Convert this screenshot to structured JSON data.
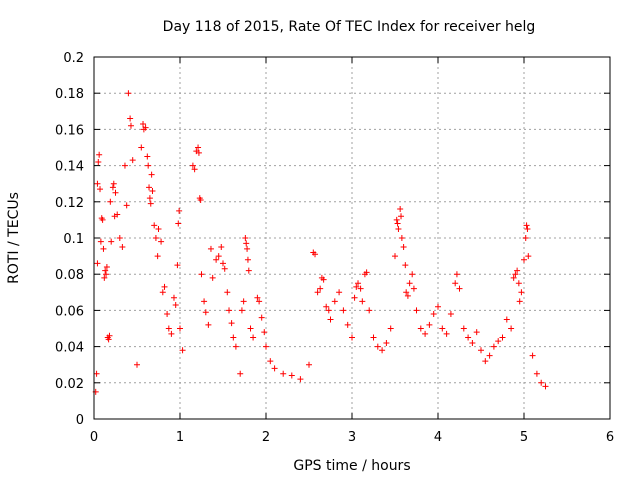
{
  "chart_data": {
    "type": "scatter",
    "title": "Day 118 of 2015, Rate Of TEC Index for receiver helg",
    "xlabel": "GPS time / hours",
    "ylabel": "ROTI / TECUs",
    "xlim": [
      0,
      6
    ],
    "ylim": [
      0,
      0.2
    ],
    "x_ticks": [
      0,
      1,
      2,
      3,
      4,
      5,
      6
    ],
    "x_tick_labels": [
      "0",
      "1",
      "2",
      "3",
      "4",
      "5",
      "6"
    ],
    "y_ticks": [
      0,
      0.02,
      0.04,
      0.06,
      0.08,
      0.1,
      0.12,
      0.14,
      0.16,
      0.18,
      0.2
    ],
    "y_tick_labels": [
      "0",
      "0.02",
      "0.04",
      "0.06",
      "0.08",
      "0.1",
      "0.12",
      "0.14",
      "0.16",
      "0.18",
      "0.2"
    ],
    "grid": true,
    "marker": "+",
    "color": "#ff0000",
    "series": [
      {
        "name": "ROTI",
        "points": [
          [
            0.02,
            0.015
          ],
          [
            0.03,
            0.025
          ],
          [
            0.04,
            0.086
          ],
          [
            0.04,
            0.13
          ],
          [
            0.05,
            0.142
          ],
          [
            0.06,
            0.146
          ],
          [
            0.07,
            0.127
          ],
          [
            0.08,
            0.098
          ],
          [
            0.09,
            0.111
          ],
          [
            0.1,
            0.11
          ],
          [
            0.11,
            0.094
          ],
          [
            0.12,
            0.078
          ],
          [
            0.13,
            0.082
          ],
          [
            0.14,
            0.08
          ],
          [
            0.15,
            0.084
          ],
          [
            0.16,
            0.045
          ],
          [
            0.17,
            0.044
          ],
          [
            0.18,
            0.046
          ],
          [
            0.19,
            0.12
          ],
          [
            0.2,
            0.098
          ],
          [
            0.22,
            0.128
          ],
          [
            0.23,
            0.13
          ],
          [
            0.24,
            0.112
          ],
          [
            0.25,
            0.125
          ],
          [
            0.27,
            0.113
          ],
          [
            0.3,
            0.1
          ],
          [
            0.33,
            0.095
          ],
          [
            0.36,
            0.14
          ],
          [
            0.38,
            0.118
          ],
          [
            0.4,
            0.18
          ],
          [
            0.42,
            0.166
          ],
          [
            0.43,
            0.162
          ],
          [
            0.45,
            0.143
          ],
          [
            0.5,
            0.03
          ],
          [
            0.55,
            0.15
          ],
          [
            0.57,
            0.163
          ],
          [
            0.58,
            0.16
          ],
          [
            0.6,
            0.161
          ],
          [
            0.62,
            0.145
          ],
          [
            0.63,
            0.14
          ],
          [
            0.64,
            0.128
          ],
          [
            0.65,
            0.122
          ],
          [
            0.66,
            0.119
          ],
          [
            0.67,
            0.135
          ],
          [
            0.68,
            0.126
          ],
          [
            0.7,
            0.107
          ],
          [
            0.72,
            0.1
          ],
          [
            0.74,
            0.09
          ],
          [
            0.75,
            0.105
          ],
          [
            0.78,
            0.098
          ],
          [
            0.8,
            0.07
          ],
          [
            0.82,
            0.073
          ],
          [
            0.85,
            0.058
          ],
          [
            0.87,
            0.05
          ],
          [
            0.9,
            0.047
          ],
          [
            0.93,
            0.067
          ],
          [
            0.95,
            0.063
          ],
          [
            0.97,
            0.085
          ],
          [
            0.98,
            0.108
          ],
          [
            0.99,
            0.115
          ],
          [
            1.0,
            0.05
          ],
          [
            1.03,
            0.038
          ],
          [
            1.15,
            0.14
          ],
          [
            1.17,
            0.138
          ],
          [
            1.19,
            0.148
          ],
          [
            1.21,
            0.15
          ],
          [
            1.22,
            0.147
          ],
          [
            1.23,
            0.122
          ],
          [
            1.24,
            0.121
          ],
          [
            1.25,
            0.08
          ],
          [
            1.28,
            0.065
          ],
          [
            1.3,
            0.059
          ],
          [
            1.33,
            0.052
          ],
          [
            1.36,
            0.094
          ],
          [
            1.38,
            0.078
          ],
          [
            1.42,
            0.088
          ],
          [
            1.45,
            0.09
          ],
          [
            1.48,
            0.095
          ],
          [
            1.5,
            0.086
          ],
          [
            1.52,
            0.083
          ],
          [
            1.55,
            0.07
          ],
          [
            1.57,
            0.06
          ],
          [
            1.6,
            0.053
          ],
          [
            1.62,
            0.045
          ],
          [
            1.65,
            0.04
          ],
          [
            1.7,
            0.025
          ],
          [
            1.72,
            0.06
          ],
          [
            1.74,
            0.065
          ],
          [
            1.76,
            0.1
          ],
          [
            1.77,
            0.097
          ],
          [
            1.78,
            0.094
          ],
          [
            1.79,
            0.088
          ],
          [
            1.8,
            0.082
          ],
          [
            1.82,
            0.05
          ],
          [
            1.85,
            0.045
          ],
          [
            1.9,
            0.067
          ],
          [
            1.92,
            0.065
          ],
          [
            1.95,
            0.056
          ],
          [
            1.98,
            0.048
          ],
          [
            2.0,
            0.04
          ],
          [
            2.05,
            0.032
          ],
          [
            2.1,
            0.028
          ],
          [
            2.2,
            0.025
          ],
          [
            2.3,
            0.024
          ],
          [
            2.4,
            0.022
          ],
          [
            2.5,
            0.03
          ],
          [
            2.55,
            0.092
          ],
          [
            2.57,
            0.091
          ],
          [
            2.6,
            0.07
          ],
          [
            2.63,
            0.072
          ],
          [
            2.65,
            0.078
          ],
          [
            2.67,
            0.077
          ],
          [
            2.7,
            0.062
          ],
          [
            2.73,
            0.06
          ],
          [
            2.75,
            0.055
          ],
          [
            2.8,
            0.065
          ],
          [
            2.85,
            0.07
          ],
          [
            2.9,
            0.06
          ],
          [
            2.95,
            0.052
          ],
          [
            3.0,
            0.045
          ],
          [
            3.03,
            0.067
          ],
          [
            3.05,
            0.073
          ],
          [
            3.07,
            0.075
          ],
          [
            3.1,
            0.072
          ],
          [
            3.12,
            0.065
          ],
          [
            3.15,
            0.08
          ],
          [
            3.17,
            0.081
          ],
          [
            3.2,
            0.06
          ],
          [
            3.25,
            0.045
          ],
          [
            3.3,
            0.04
          ],
          [
            3.35,
            0.038
          ],
          [
            3.4,
            0.042
          ],
          [
            3.45,
            0.05
          ],
          [
            3.5,
            0.09
          ],
          [
            3.52,
            0.11
          ],
          [
            3.53,
            0.108
          ],
          [
            3.54,
            0.105
          ],
          [
            3.56,
            0.116
          ],
          [
            3.57,
            0.112
          ],
          [
            3.58,
            0.1
          ],
          [
            3.6,
            0.095
          ],
          [
            3.62,
            0.085
          ],
          [
            3.63,
            0.07
          ],
          [
            3.65,
            0.068
          ],
          [
            3.67,
            0.075
          ],
          [
            3.7,
            0.08
          ],
          [
            3.72,
            0.072
          ],
          [
            3.75,
            0.06
          ],
          [
            3.8,
            0.05
          ],
          [
            3.85,
            0.047
          ],
          [
            3.9,
            0.052
          ],
          [
            3.95,
            0.058
          ],
          [
            4.0,
            0.062
          ],
          [
            4.05,
            0.05
          ],
          [
            4.1,
            0.047
          ],
          [
            4.15,
            0.058
          ],
          [
            4.2,
            0.075
          ],
          [
            4.22,
            0.08
          ],
          [
            4.25,
            0.072
          ],
          [
            4.3,
            0.05
          ],
          [
            4.35,
            0.045
          ],
          [
            4.4,
            0.042
          ],
          [
            4.45,
            0.048
          ],
          [
            4.5,
            0.038
          ],
          [
            4.55,
            0.032
          ],
          [
            4.6,
            0.035
          ],
          [
            4.65,
            0.04
          ],
          [
            4.7,
            0.043
          ],
          [
            4.75,
            0.045
          ],
          [
            4.8,
            0.055
          ],
          [
            4.85,
            0.05
          ],
          [
            4.88,
            0.078
          ],
          [
            4.9,
            0.08
          ],
          [
            4.92,
            0.082
          ],
          [
            4.94,
            0.075
          ],
          [
            4.95,
            0.065
          ],
          [
            4.97,
            0.07
          ],
          [
            5.0,
            0.088
          ],
          [
            5.02,
            0.1
          ],
          [
            5.03,
            0.107
          ],
          [
            5.04,
            0.105
          ],
          [
            5.05,
            0.09
          ],
          [
            5.1,
            0.035
          ],
          [
            5.15,
            0.025
          ],
          [
            5.2,
            0.02
          ],
          [
            5.25,
            0.018
          ]
        ]
      }
    ]
  }
}
